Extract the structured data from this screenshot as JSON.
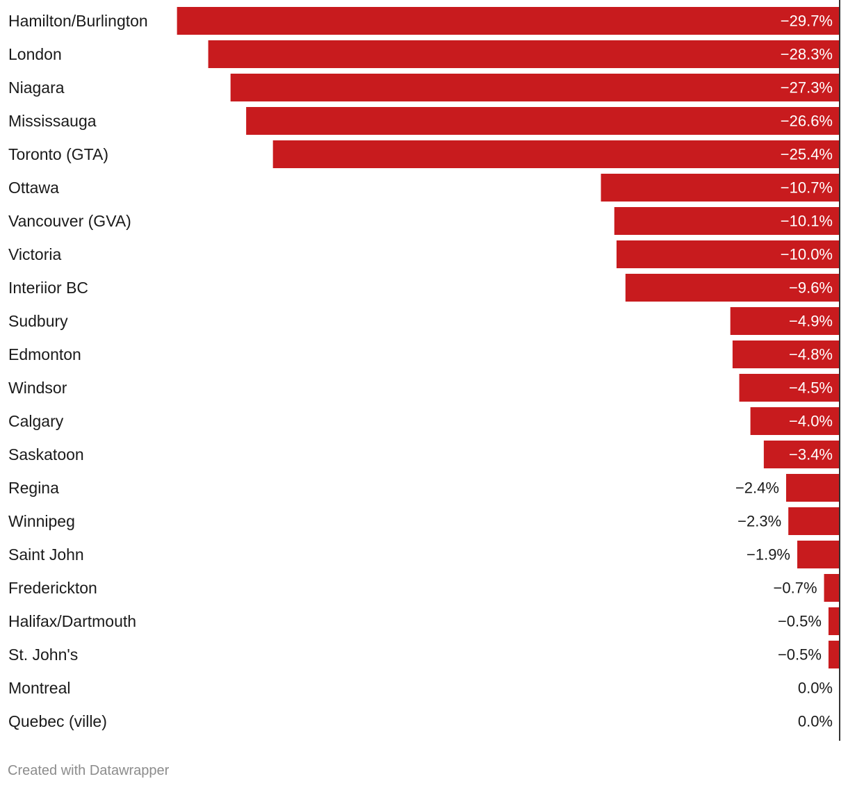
{
  "chart_data": {
    "type": "bar",
    "orientation": "horizontal",
    "categories": [
      "Hamilton/Burlington",
      "London",
      "Niagara",
      "Mississauga",
      "Toronto (GTA)",
      "Ottawa",
      "Vancouver (GVA)",
      "Victoria",
      "Interiior BC",
      "Sudbury",
      "Edmonton",
      "Windsor",
      "Calgary",
      "Saskatoon",
      "Regina",
      "Winnipeg",
      "Saint John",
      "Frederickton",
      "Halifax/Dartmouth",
      "St. John's",
      "Montreal",
      "Quebec (ville)"
    ],
    "values": [
      -29.7,
      -28.3,
      -27.3,
      -26.6,
      -25.4,
      -10.7,
      -10.1,
      -10.0,
      -9.6,
      -4.9,
      -4.8,
      -4.5,
      -4.0,
      -3.4,
      -2.4,
      -2.3,
      -1.9,
      -0.7,
      -0.5,
      -0.5,
      0.0,
      0.0
    ],
    "value_labels": [
      "−29.7%",
      "−28.3%",
      "−27.3%",
      "−26.6%",
      "−25.4%",
      "−10.7%",
      "−10.1%",
      "−10.0%",
      "−9.6%",
      "−4.9%",
      "−4.8%",
      "−4.5%",
      "−4.0%",
      "−3.4%",
      "−2.4%",
      "−2.3%",
      "−1.9%",
      "−0.7%",
      "−0.5%",
      "−0.5%",
      "0.0%",
      "0.0%"
    ],
    "xlim": [
      -30,
      0
    ],
    "bar_color": "#c81b1e",
    "inside_label_color": "#ffffff",
    "outside_label_color": "#1a1a1a",
    "axis_color": "#333333",
    "title": "",
    "xlabel": "",
    "ylabel": ""
  },
  "footer": {
    "credit": "Created with Datawrapper"
  }
}
